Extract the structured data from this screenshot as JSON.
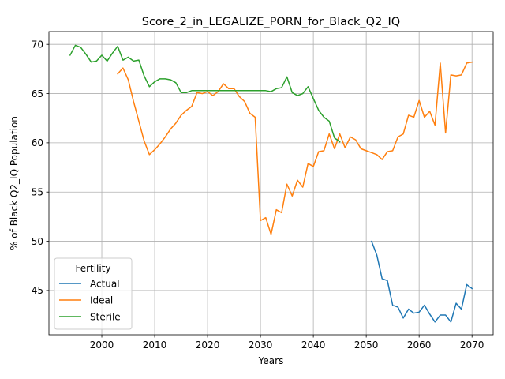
{
  "chart_data": {
    "type": "line",
    "title": "Score_2_in_LEGALIZE_PORN_for_Black_Q2_IQ",
    "xlabel": "Years",
    "ylabel": "% of Black Q2_IQ Population",
    "xlim": [
      1990,
      2074
    ],
    "ylim": [
      40.5,
      71.3
    ],
    "xticks": [
      2000,
      2010,
      2020,
      2030,
      2040,
      2050,
      2060,
      2070
    ],
    "yticks": [
      45,
      50,
      55,
      60,
      65,
      70
    ],
    "grid": true,
    "legend": {
      "title": "Fertility",
      "placement": "lower-left",
      "entries": [
        "Actual",
        "Ideal",
        "Sterile"
      ]
    },
    "series": [
      {
        "name": "Actual",
        "color": "#1f77b4",
        "x": [
          2051,
          2052,
          2053,
          2054,
          2055,
          2056,
          2057,
          2058,
          2059,
          2060,
          2061,
          2062,
          2063,
          2064,
          2065,
          2066,
          2067,
          2068,
          2069,
          2070
        ],
        "y": [
          50.0,
          48.6,
          46.2,
          46.0,
          43.5,
          43.3,
          42.2,
          43.1,
          42.7,
          42.8,
          43.5,
          42.6,
          41.8,
          42.5,
          42.5,
          41.8,
          43.7,
          43.1,
          45.6,
          45.2
        ]
      },
      {
        "name": "Ideal",
        "color": "#ff7f0e",
        "x": [
          2003,
          2004,
          2005,
          2006,
          2007,
          2008,
          2009,
          2010,
          2011,
          2012,
          2013,
          2014,
          2015,
          2016,
          2017,
          2018,
          2019,
          2020,
          2021,
          2022,
          2023,
          2024,
          2025,
          2026,
          2027,
          2028,
          2029,
          2030,
          2031,
          2032,
          2033,
          2034,
          2035,
          2036,
          2037,
          2038,
          2039,
          2040,
          2041,
          2042,
          2043,
          2044,
          2045,
          2046,
          2047,
          2048,
          2049,
          2050,
          2051,
          2052,
          2053,
          2054,
          2055,
          2056,
          2057,
          2058,
          2059,
          2060,
          2061,
          2062,
          2063,
          2064,
          2065,
          2066,
          2067,
          2068,
          2069,
          2070
        ],
        "y": [
          67.0,
          67.6,
          66.4,
          64.2,
          62.2,
          60.2,
          58.8,
          59.3,
          59.9,
          60.6,
          61.4,
          62.0,
          62.8,
          63.3,
          63.7,
          65.1,
          65.0,
          65.2,
          64.8,
          65.2,
          66.0,
          65.5,
          65.5,
          64.7,
          64.2,
          63.0,
          62.6,
          52.1,
          52.4,
          50.7,
          53.2,
          52.9,
          55.8,
          54.6,
          56.2,
          55.5,
          57.9,
          57.6,
          59.1,
          59.2,
          60.9,
          59.4,
          60.9,
          59.5,
          60.6,
          60.3,
          59.4,
          59.2,
          59.0,
          58.8,
          58.3,
          59.1,
          59.2,
          60.6,
          60.9,
          62.8,
          62.6,
          64.3,
          62.6,
          63.2,
          61.8,
          68.1,
          61.0,
          66.9,
          66.8,
          66.9,
          68.1,
          68.2
        ]
      },
      {
        "name": "Sterile",
        "color": "#2ca02c",
        "x": [
          1994,
          1995,
          1996,
          1997,
          1998,
          1999,
          2000,
          2001,
          2002,
          2003,
          2004,
          2005,
          2006,
          2007,
          2008,
          2009,
          2010,
          2011,
          2012,
          2013,
          2014,
          2015,
          2016,
          2017,
          2018,
          2019,
          2020,
          2021,
          2022,
          2023,
          2024,
          2025,
          2026,
          2027,
          2028,
          2029,
          2030,
          2031,
          2032,
          2033,
          2034,
          2035,
          2036,
          2037,
          2038,
          2039,
          2040,
          2041,
          2042,
          2043,
          2044,
          2045
        ],
        "y": [
          68.9,
          69.9,
          69.7,
          69.0,
          68.2,
          68.3,
          68.9,
          68.3,
          69.1,
          69.8,
          68.4,
          68.7,
          68.3,
          68.4,
          66.8,
          65.7,
          66.2,
          66.5,
          66.5,
          66.4,
          66.1,
          65.1,
          65.1,
          65.3,
          65.3,
          65.3,
          65.3,
          65.3,
          65.3,
          65.3,
          65.3,
          65.3,
          65.3,
          65.3,
          65.3,
          65.3,
          65.3,
          65.3,
          65.2,
          65.5,
          65.6,
          66.7,
          65.1,
          64.8,
          65.0,
          65.7,
          64.5,
          63.3,
          62.6,
          62.2,
          60.5,
          60.1
        ]
      }
    ]
  }
}
